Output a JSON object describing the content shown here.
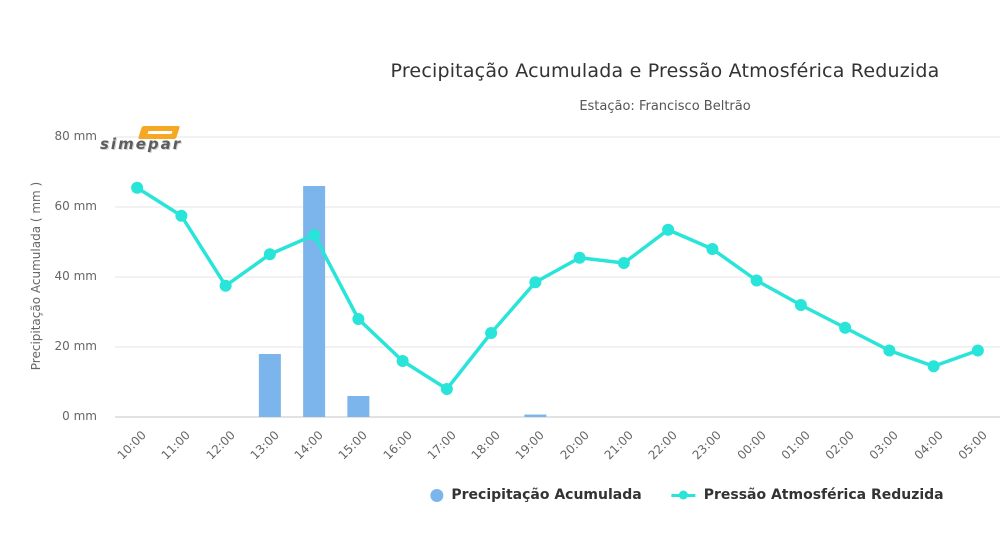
{
  "header": {
    "title": "Precipitação Acumulada e Pressão Atmosférica Reduzida",
    "subtitle": "Estação: Francisco Beltrão"
  },
  "logo": {
    "text": "simepar"
  },
  "y_axis": {
    "title": "Precipitação Acumulada ( mm )",
    "ticks": [
      {
        "label": "80 mm",
        "value": 80
      },
      {
        "label": "60 mm",
        "value": 60
      },
      {
        "label": "40 mm",
        "value": 40
      },
      {
        "label": "20 mm",
        "value": 20
      },
      {
        "label": "0 mm",
        "value": 0
      }
    ]
  },
  "colors": {
    "bar": "#7cb5ec",
    "line": "#28e4d9",
    "grid": "#e6e6e6",
    "axis": "#c6c6c6",
    "logo_orange": "#f7a823"
  },
  "chart_data": {
    "type": "bar+line combo",
    "title": "Precipitação Acumulada e Pressão Atmosférica Reduzida",
    "subtitle": "Estação: Francisco Beltrão",
    "ylabel": "Precipitação Acumulada ( mm )",
    "ylim": [
      0,
      80
    ],
    "grid": "horizontal",
    "legend_position": "bottom",
    "categories": [
      "10:00",
      "11:00",
      "12:00",
      "13:00",
      "14:00",
      "15:00",
      "16:00",
      "17:00",
      "18:00",
      "19:00",
      "20:00",
      "21:00",
      "22:00",
      "23:00",
      "00:00",
      "01:00",
      "02:00",
      "03:00",
      "04:00",
      "05:00"
    ],
    "series": [
      {
        "name": "Precipitação Acumulada",
        "type": "bar",
        "color": "#7cb5ec",
        "values": [
          0,
          0,
          0,
          18,
          66,
          6,
          0,
          0,
          0,
          0.7,
          0,
          0,
          0,
          0,
          0,
          0,
          0,
          0,
          0,
          0
        ]
      },
      {
        "name": "Pressão Atmosférica Reduzida",
        "type": "line",
        "color": "#28e4d9",
        "values": [
          65.5,
          57.5,
          37.5,
          46.5,
          52,
          28,
          16,
          8,
          24,
          38.5,
          45.5,
          44,
          53.5,
          48,
          39,
          32,
          25.5,
          19,
          14.5,
          19
        ]
      }
    ]
  }
}
